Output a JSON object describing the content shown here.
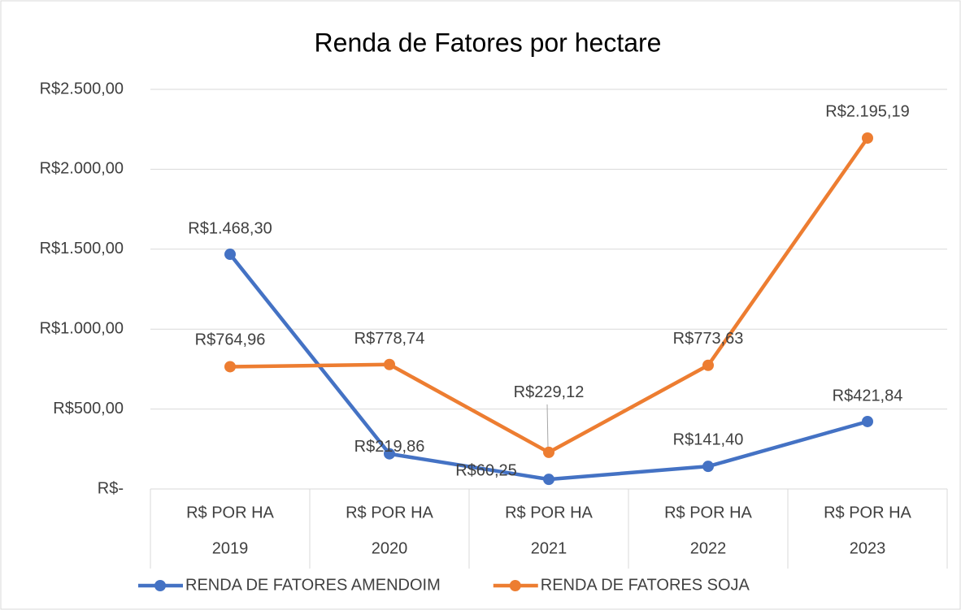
{
  "chart_data": {
    "type": "line",
    "title": "Renda de Fatores por hectare",
    "categories": [
      "2019",
      "2020",
      "2021",
      "2022",
      "2023"
    ],
    "category_group_labels": [
      "R$ POR HA",
      "R$ POR HA",
      "R$ POR HA",
      "R$ POR HA",
      "R$ POR HA"
    ],
    "series": [
      {
        "name": "RENDA DE FATORES AMENDOIM",
        "color": "#4472c4",
        "values": [
          1468.3,
          219.86,
          60.25,
          141.4,
          421.84
        ],
        "value_labels": [
          "R$1.468,30",
          "R$219,86",
          "R$60,25",
          "R$141,40",
          "R$421,84"
        ]
      },
      {
        "name": "RENDA DE FATORES SOJA",
        "color": "#ed7d31",
        "values": [
          764.96,
          778.74,
          229.12,
          773.63,
          2195.19
        ],
        "value_labels": [
          "R$764,96",
          "R$778,74",
          "R$229,12",
          "R$773,63",
          "R$2.195,19"
        ]
      }
    ],
    "ylim": [
      0,
      2500
    ],
    "yticks": [
      {
        "value": 0,
        "label": "R$-"
      },
      {
        "value": 500,
        "label": "R$500,00"
      },
      {
        "value": 1000,
        "label": "R$1.000,00"
      },
      {
        "value": 1500,
        "label": "R$1.500,00"
      },
      {
        "value": 2000,
        "label": "R$2.000,00"
      },
      {
        "value": 2500,
        "label": "R$2.500,00"
      }
    ],
    "grid": true,
    "legend": "bottom"
  }
}
